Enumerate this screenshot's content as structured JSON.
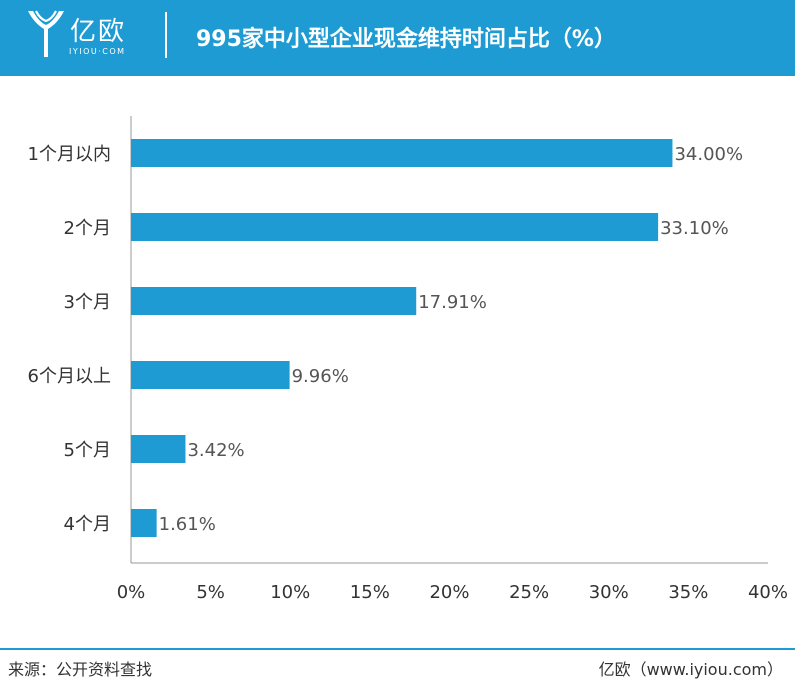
{
  "header": {
    "logo_text": "亿欧",
    "logo_domain": "IYIOU·COM",
    "title": "995家中小型企业现金维持时间占比（%）"
  },
  "colors": {
    "header_bg": "#1d9bd2",
    "bar": "#1d9bd2",
    "text": "#333333",
    "axis": "#999999"
  },
  "chart_data": {
    "type": "bar",
    "orientation": "horizontal",
    "categories": [
      "1个月以内",
      "2个月",
      "3个月",
      "6个月以上",
      "5个月",
      "4个月"
    ],
    "values": [
      34.0,
      33.1,
      17.91,
      9.96,
      3.42,
      1.61
    ],
    "data_labels": [
      "34.00%",
      "33.10%",
      "17.91%",
      "9.96%",
      "3.42%",
      "1.61%"
    ],
    "xlim": [
      0,
      40
    ],
    "x_ticks": [
      0,
      5,
      10,
      15,
      20,
      25,
      30,
      35,
      40
    ],
    "x_tick_labels": [
      "0%",
      "5%",
      "10%",
      "15%",
      "20%",
      "25%",
      "30%",
      "35%",
      "40%"
    ],
    "title": "995家中小型企业现金维持时间占比（%）",
    "grid": false,
    "legend": "none"
  },
  "footer": {
    "source": "来源：公开资料查找",
    "credit": "亿欧（www.iyiou.com）"
  }
}
